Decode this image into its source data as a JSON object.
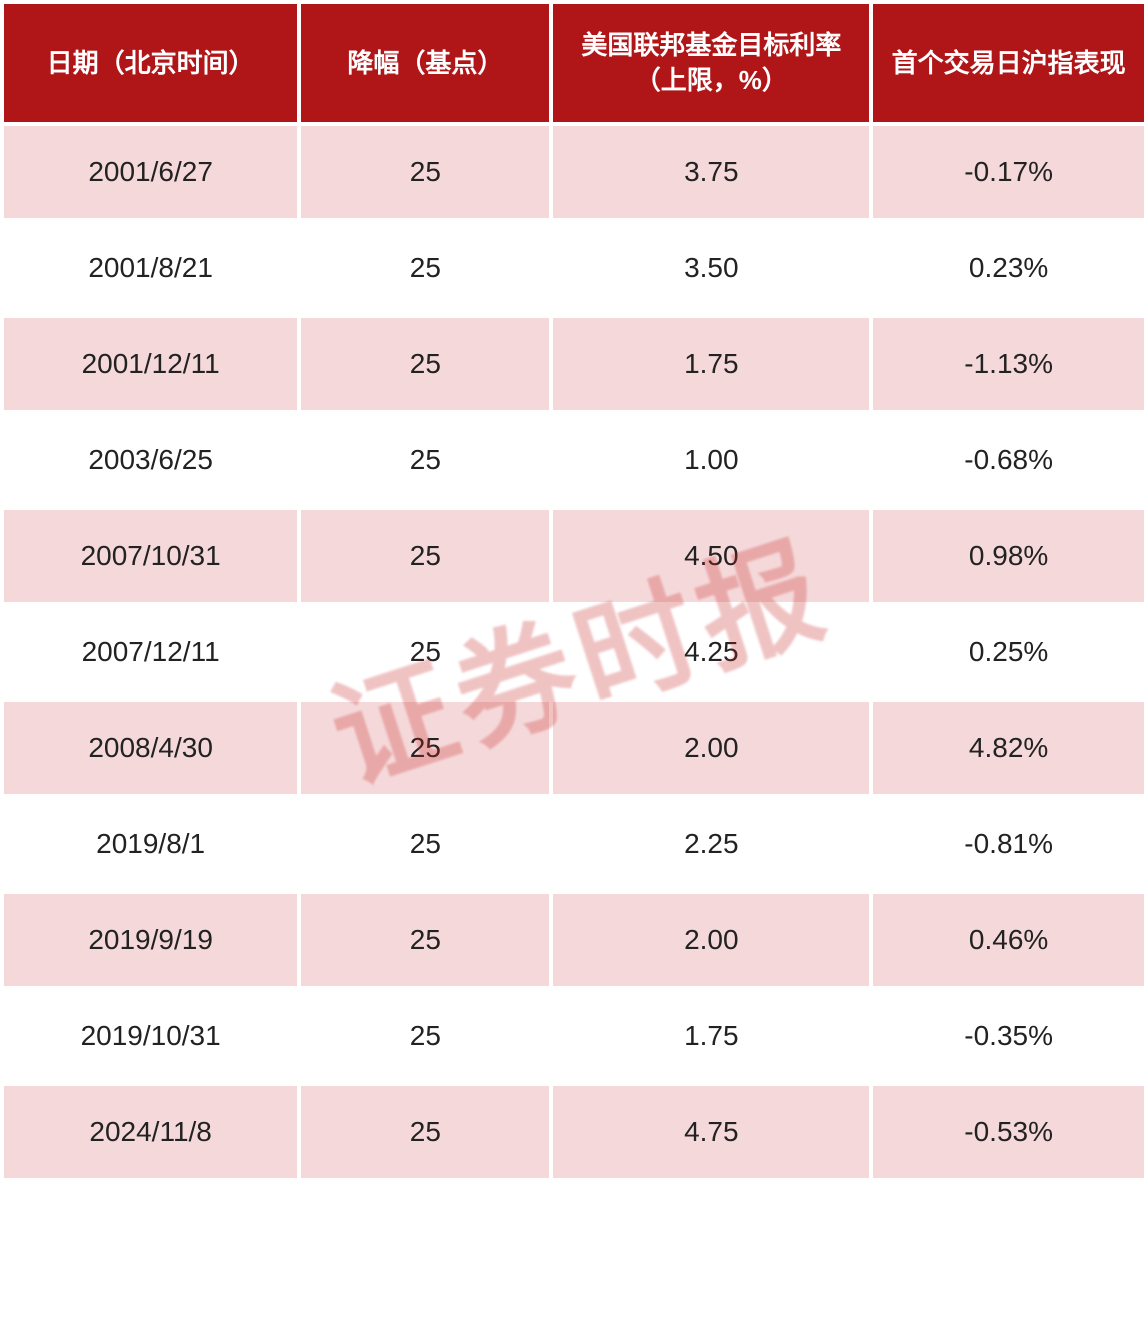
{
  "table": {
    "type": "table",
    "header_bg": "#b01518",
    "header_fg": "#ffffff",
    "row_odd_bg": "#f5d9da",
    "row_even_bg": "#ffffff",
    "cell_fg": "#222222",
    "header_fontsize": 26,
    "cell_fontsize": 28,
    "border_spacing": 4,
    "columns": [
      {
        "label": "日期（北京时间）",
        "width_pct": 26,
        "align": "center"
      },
      {
        "label": "降幅（基点）",
        "width_pct": 22,
        "align": "center"
      },
      {
        "label": "美国联邦基金目标利率（上限，%）",
        "width_pct": 28,
        "align": "center"
      },
      {
        "label": "首个交易日沪指表现",
        "width_pct": 24,
        "align": "center"
      }
    ],
    "rows": [
      [
        "2001/6/27",
        "25",
        "3.75",
        "-0.17%"
      ],
      [
        "2001/8/21",
        "25",
        "3.50",
        "0.23%"
      ],
      [
        "2001/12/11",
        "25",
        "1.75",
        "-1.13%"
      ],
      [
        "2003/6/25",
        "25",
        "1.00",
        "-0.68%"
      ],
      [
        "2007/10/31",
        "25",
        "4.50",
        "0.98%"
      ],
      [
        "2007/12/11",
        "25",
        "4.25",
        "0.25%"
      ],
      [
        "2008/4/30",
        "25",
        "2.00",
        "4.82%"
      ],
      [
        "2019/8/1",
        "25",
        "2.25",
        "-0.81%"
      ],
      [
        "2019/9/19",
        "25",
        "2.00",
        "0.46%"
      ],
      [
        "2019/10/31",
        "25",
        "1.75",
        "-0.35%"
      ],
      [
        "2024/11/8",
        "25",
        "4.75",
        "-0.53%"
      ]
    ]
  },
  "watermark": {
    "text": "证券时报",
    "color": "rgba(200,40,40,0.28)",
    "fontsize": 120,
    "rotate_deg": -18
  }
}
